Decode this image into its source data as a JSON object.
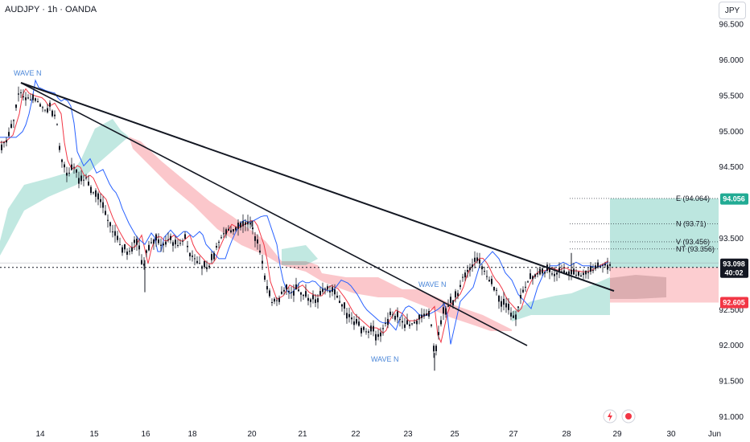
{
  "header": {
    "title": "AUDJPY · 1h · OANDA",
    "currency": "JPY"
  },
  "chart_data": {
    "type": "candlestick",
    "title": "AUDJPY · 1h · OANDA",
    "y_ticks": [
      "96.500",
      "96.000",
      "95.500",
      "95.000",
      "94.500",
      "93.500",
      "92.500",
      "92.000",
      "91.500",
      "91.000"
    ],
    "y_tick_values": [
      96.5,
      96.0,
      95.5,
      95.0,
      94.5,
      93.5,
      92.5,
      92.0,
      91.5,
      91.0
    ],
    "x_ticks": [
      "14",
      "15",
      "16",
      "18",
      "20",
      "21",
      "22",
      "23",
      "25",
      "27",
      "28",
      "29",
      "30",
      "Jun"
    ],
    "ylim": [
      91.0,
      96.65
    ],
    "wave_labels": [
      "WAVE N",
      "WAVE N",
      "WAVE N"
    ],
    "levels": [
      {
        "label": "E (94.064)",
        "value": 94.064
      },
      {
        "label": "N (93.71)",
        "value": 93.71
      },
      {
        "label": "V (93.456)",
        "value": 93.456
      },
      {
        "label": "NT (93.356)",
        "value": 93.356
      }
    ],
    "price_boxes": {
      "target": {
        "text": "94.056",
        "value": 94.056,
        "color": "#22ab94"
      },
      "current": {
        "text": "93.098",
        "sub": "40:02",
        "value": 93.098,
        "color": "#131722"
      },
      "stop": {
        "text": "92.605",
        "value": 92.605,
        "color": "#f23645"
      }
    },
    "colors": {
      "bull_cloud": "#22ab94",
      "bear_cloud": "#f23645",
      "tenkan": "#f23645",
      "kijun": "#2962ff",
      "candle": "#131722"
    }
  }
}
